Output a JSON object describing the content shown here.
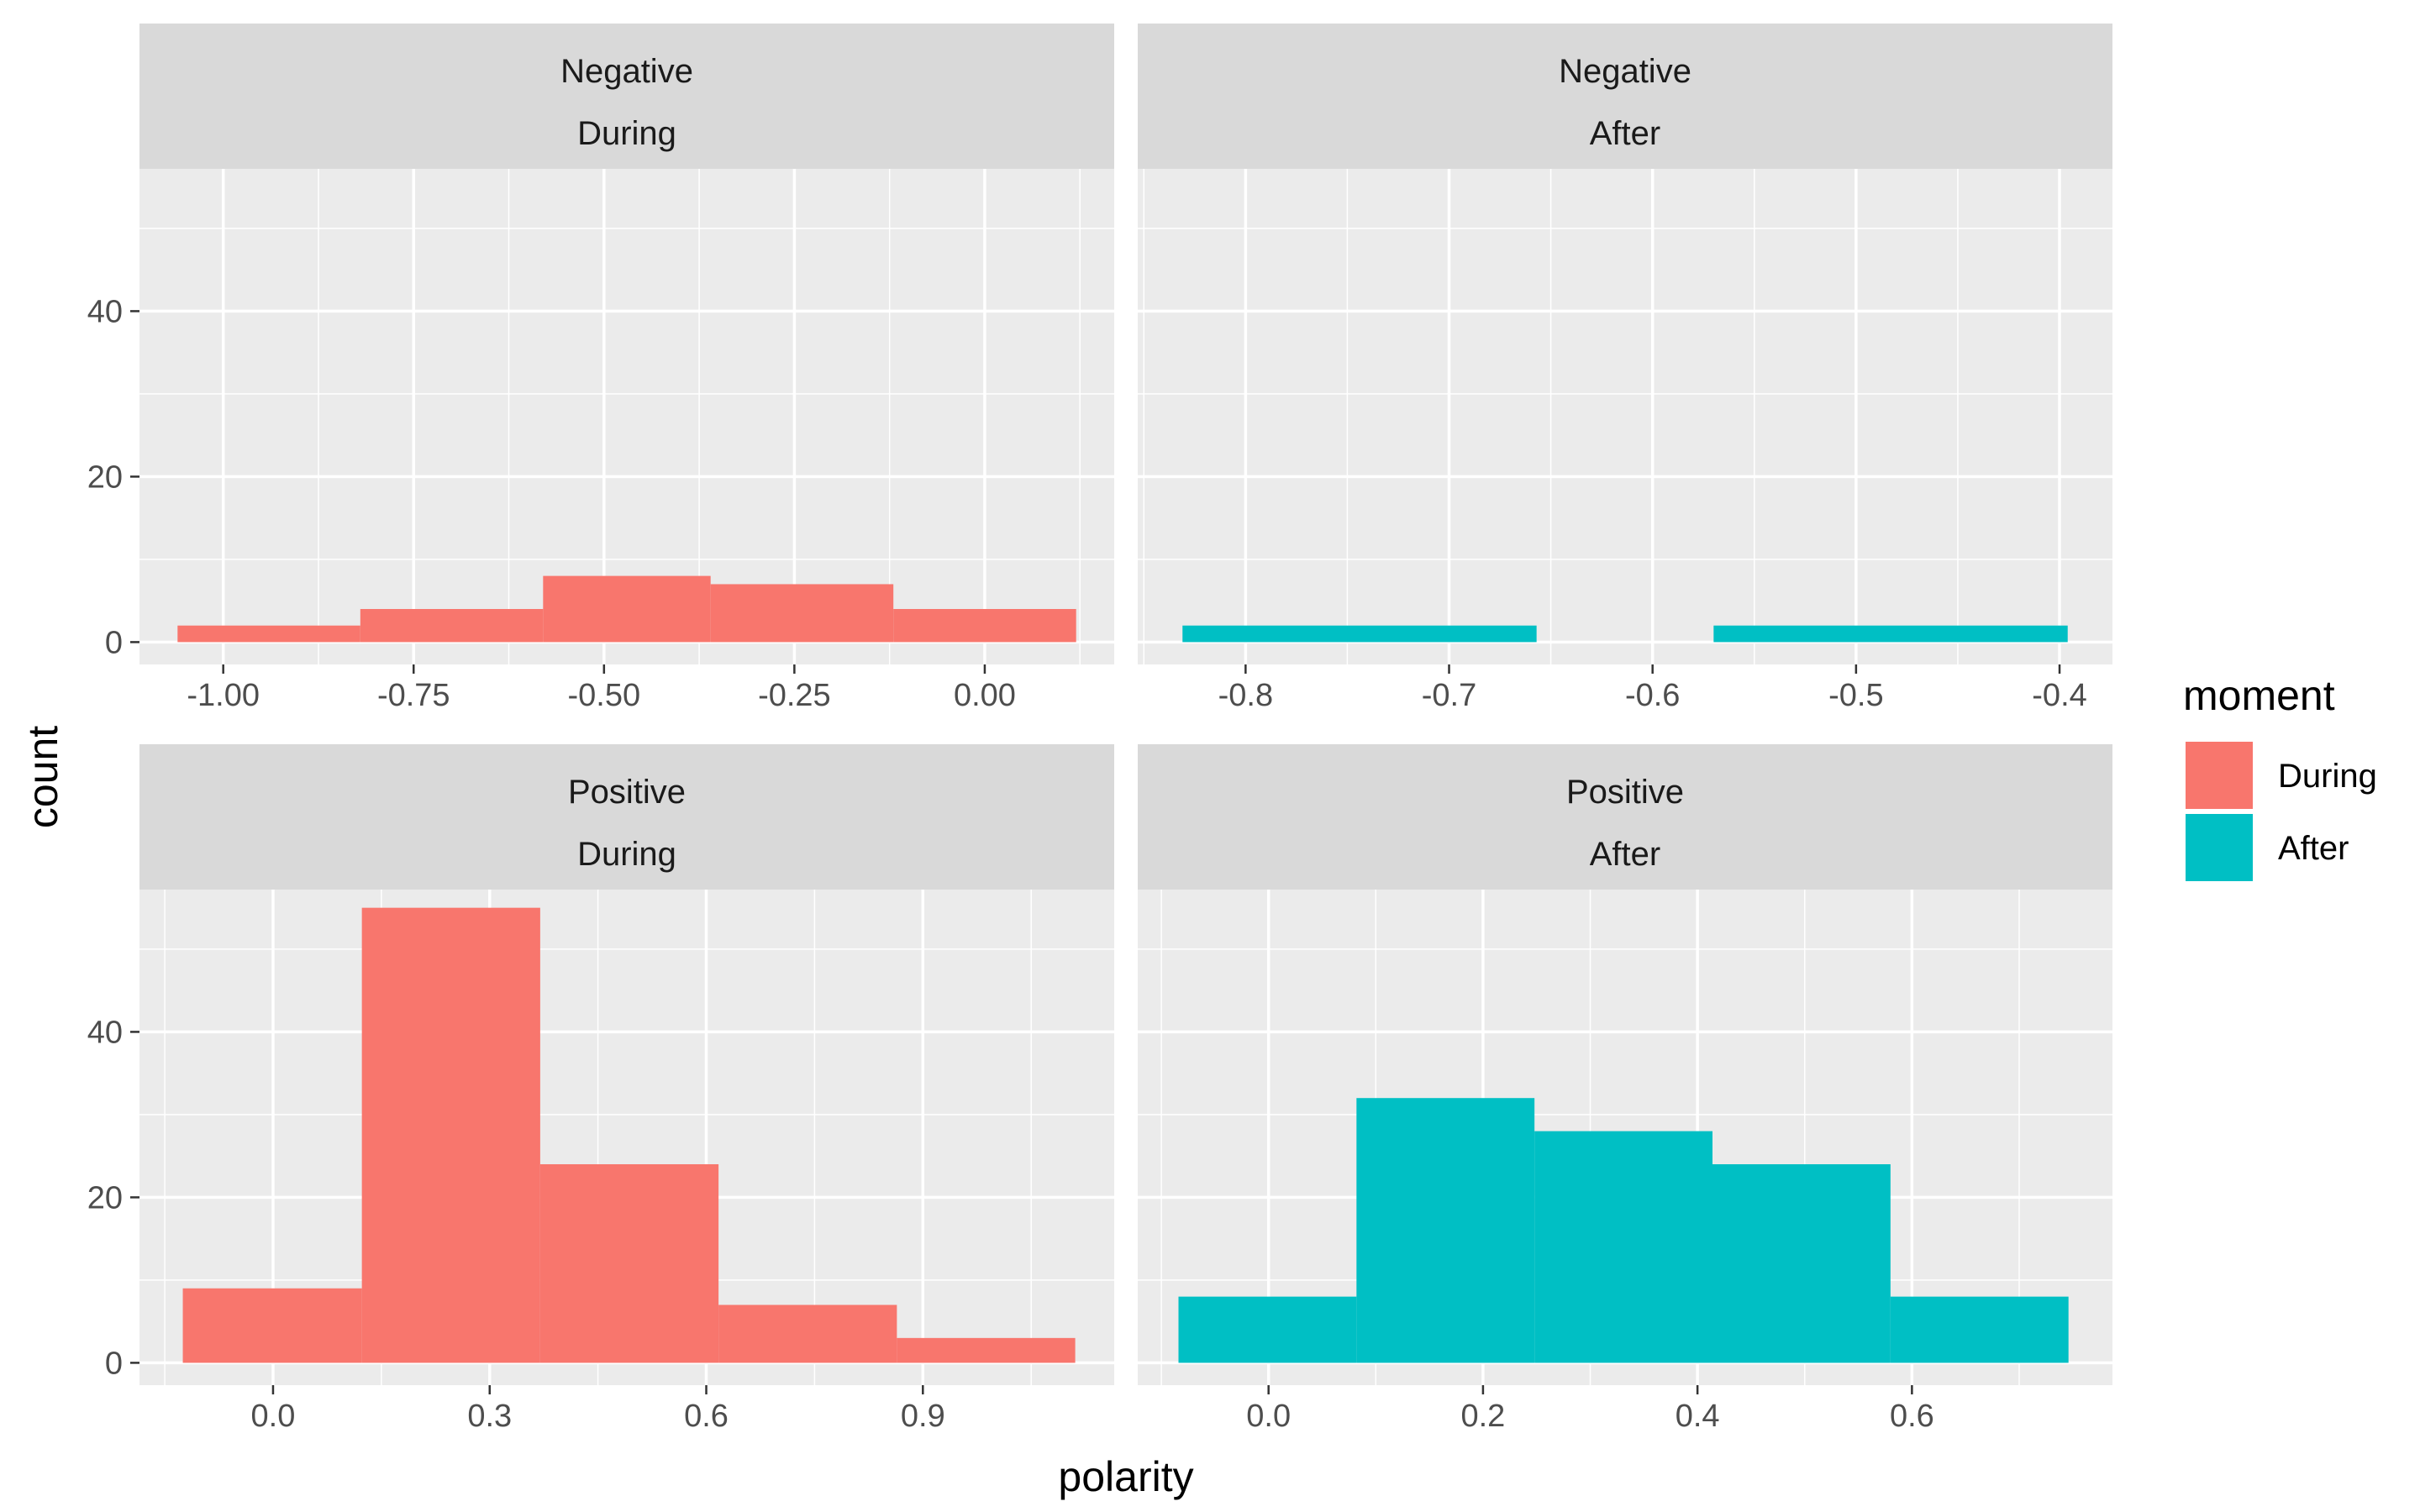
{
  "chart_data": {
    "type": "bar",
    "xlabel": "polarity",
    "ylabel": "count",
    "legend": {
      "title": "moment",
      "placement": "right",
      "entries": [
        {
          "label": "During",
          "color": "#F8766D"
        },
        {
          "label": "After",
          "color": "#00BFC4"
        }
      ]
    },
    "grid": true,
    "panels": [
      {
        "strip": [
          "Negative",
          "During"
        ],
        "fill": "#F8766D",
        "xlim": [
          -1.11,
          0.17
        ],
        "xticks": [
          -1.0,
          -0.75,
          -0.5,
          -0.25,
          0.0
        ],
        "xtick_labels": [
          "-1.00",
          "-0.75",
          "-0.50",
          "-0.25",
          "0.00"
        ],
        "bins": [
          {
            "x0": -1.06,
            "x1": -0.82,
            "count": 2
          },
          {
            "x0": -0.82,
            "x1": -0.58,
            "count": 4
          },
          {
            "x0": -0.58,
            "x1": -0.36,
            "count": 8
          },
          {
            "x0": -0.36,
            "x1": -0.12,
            "count": 7
          },
          {
            "x0": -0.12,
            "x1": 0.12,
            "count": 4
          }
        ]
      },
      {
        "strip": [
          "Negative",
          "After"
        ],
        "fill": "#00BFC4",
        "xlim": [
          -0.853,
          -0.374
        ],
        "xticks": [
          -0.8,
          -0.7,
          -0.6,
          -0.5,
          -0.4
        ],
        "xtick_labels": [
          "-0.8",
          "-0.7",
          "-0.6",
          "-0.5",
          "-0.4"
        ],
        "bins": [
          {
            "x0": -0.831,
            "x1": -0.657,
            "count": 2
          },
          {
            "x0": -0.657,
            "x1": -0.57,
            "count": 0
          },
          {
            "x0": -0.57,
            "x1": -0.396,
            "count": 2
          }
        ]
      },
      {
        "strip": [
          "Positive",
          "During"
        ],
        "fill": "#F8766D",
        "xlim": [
          -0.185,
          1.165
        ],
        "xticks": [
          0.0,
          0.3,
          0.6,
          0.9
        ],
        "xtick_labels": [
          "0.0",
          "0.3",
          "0.6",
          "0.9"
        ],
        "bins": [
          {
            "x0": -0.125,
            "x1": 0.123,
            "count": 9
          },
          {
            "x0": 0.123,
            "x1": 0.37,
            "count": 55
          },
          {
            "x0": 0.37,
            "x1": 0.617,
            "count": 24
          },
          {
            "x0": 0.617,
            "x1": 0.864,
            "count": 7
          },
          {
            "x0": 0.864,
            "x1": 1.111,
            "count": 3
          }
        ]
      },
      {
        "strip": [
          "Positive",
          "After"
        ],
        "fill": "#00BFC4",
        "xlim": [
          -0.122,
          0.787
        ],
        "xticks": [
          0.0,
          0.2,
          0.4,
          0.6
        ],
        "xtick_labels": [
          "0.0",
          "0.2",
          "0.4",
          "0.6"
        ],
        "bins": [
          {
            "x0": -0.084,
            "x1": 0.082,
            "count": 8
          },
          {
            "x0": 0.082,
            "x1": 0.248,
            "count": 32
          },
          {
            "x0": 0.248,
            "x1": 0.414,
            "count": 28
          },
          {
            "x0": 0.414,
            "x1": 0.58,
            "count": 24
          },
          {
            "x0": 0.58,
            "x1": 0.746,
            "count": 8
          }
        ]
      }
    ],
    "rows": [
      {
        "ylim": [
          -2.7,
          57.2
        ],
        "yticks": [
          0,
          20,
          40
        ],
        "ytick_labels": [
          "0",
          "20",
          "40"
        ]
      },
      {
        "ylim": [
          -2.7,
          57.2
        ],
        "yticks": [
          0,
          20,
          40
        ],
        "ytick_labels": [
          "0",
          "20",
          "40"
        ]
      }
    ]
  }
}
